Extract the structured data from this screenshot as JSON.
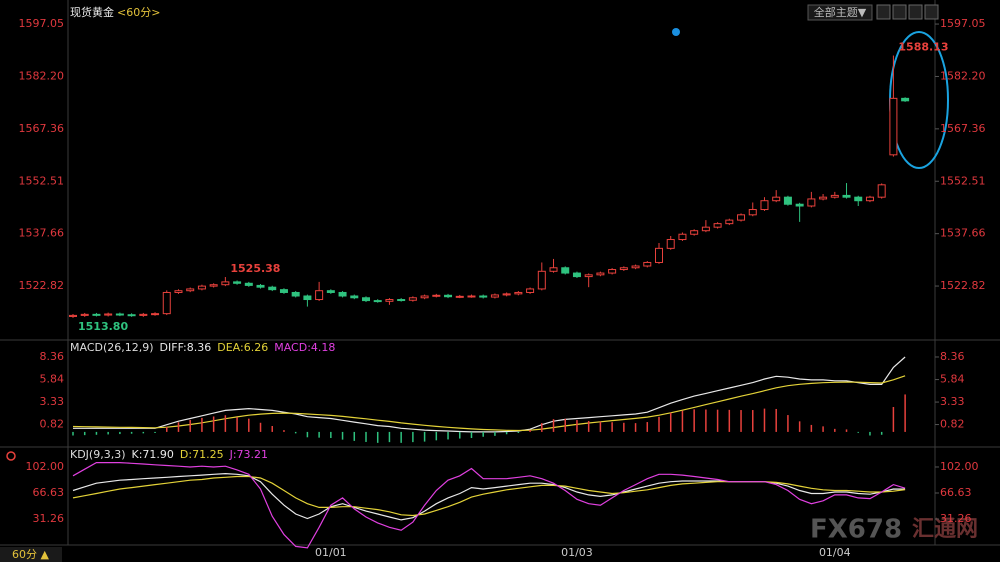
{
  "header": {
    "symbol": "现货黄金",
    "period": "<60分>",
    "theme_button": "全部主题▼"
  },
  "footer": {
    "period_button": "60分 ▲"
  },
  "watermark": {
    "brand": "FX678",
    "name": "汇通网"
  },
  "chart_data": [
    {
      "type": "candlestick",
      "up_color": "#e8413c",
      "down_color": "#2fc27f",
      "categories": [
        null,
        null,
        null,
        null,
        null,
        null,
        null,
        null,
        null,
        null,
        null,
        null,
        null,
        null,
        null,
        null,
        null,
        null,
        null,
        null,
        null,
        null,
        "01/01",
        null,
        null,
        null,
        null,
        null,
        null,
        null,
        null,
        null,
        null,
        null,
        null,
        null,
        null,
        null,
        null,
        null,
        null,
        null,
        null,
        "01/03",
        null,
        null,
        null,
        null,
        null,
        null,
        null,
        null,
        null,
        null,
        null,
        null,
        null,
        null,
        null,
        null,
        null,
        null,
        null,
        null,
        null,
        "01/04",
        null,
        null,
        null,
        null,
        null,
        null
      ],
      "open": [
        1514.2,
        1514.5,
        1514.8,
        1514.6,
        1514.9,
        1514.7,
        1514.5,
        1514.8,
        1515.0,
        1521.0,
        1521.5,
        1522.0,
        1522.8,
        1523.2,
        1524.0,
        1523.6,
        1523.0,
        1522.5,
        1521.8,
        1521.0,
        1520.0,
        1519.0,
        1521.5,
        1521.0,
        1520.0,
        1519.5,
        1518.7,
        1518.5,
        1519.0,
        1518.8,
        1519.5,
        1520.0,
        1520.2,
        1519.8,
        1519.9,
        1520.0,
        1519.7,
        1520.3,
        1520.6,
        1521.0,
        1522.0,
        1527.0,
        1528.0,
        1526.5,
        1525.5,
        1526.0,
        1526.5,
        1527.5,
        1528.0,
        1528.5,
        1529.5,
        1533.5,
        1536.0,
        1537.5,
        1538.5,
        1539.5,
        1540.5,
        1541.5,
        1543.0,
        1544.5,
        1547.0,
        1548.0,
        1546.0,
        1545.5,
        1547.5,
        1548.0,
        1548.5,
        1548.0,
        1547.0,
        1548.0,
        1560.0,
        1576.0
      ],
      "high": [
        1514.9,
        1515.2,
        1515.2,
        1515.3,
        1515.3,
        1515.1,
        1515.2,
        1515.4,
        1521.6,
        1521.9,
        1522.4,
        1523.2,
        1523.6,
        1525.38,
        1524.4,
        1524.0,
        1523.4,
        1522.9,
        1522.2,
        1521.4,
        1520.4,
        1524.0,
        1521.9,
        1521.4,
        1520.4,
        1519.9,
        1519.1,
        1519.4,
        1519.4,
        1519.9,
        1520.4,
        1520.6,
        1520.6,
        1520.3,
        1520.4,
        1520.4,
        1520.7,
        1521.0,
        1521.4,
        1522.4,
        1529.5,
        1530.5,
        1528.4,
        1526.9,
        1526.4,
        1526.9,
        1527.9,
        1528.4,
        1528.9,
        1529.9,
        1535.0,
        1537.0,
        1538.0,
        1538.9,
        1541.5,
        1540.9,
        1541.9,
        1543.4,
        1546.5,
        1548.0,
        1550.0,
        1548.4,
        1546.4,
        1549.5,
        1548.9,
        1549.5,
        1552.0,
        1548.4,
        1548.4,
        1551.9,
        1588.13,
        1576.3
      ],
      "low": [
        1513.8,
        1514.1,
        1514.2,
        1514.2,
        1514.3,
        1514.1,
        1514.1,
        1514.4,
        1514.6,
        1520.6,
        1521.1,
        1521.6,
        1522.4,
        1522.8,
        1523.2,
        1522.6,
        1522.1,
        1521.4,
        1520.6,
        1519.6,
        1517.0,
        1518.6,
        1520.6,
        1519.6,
        1519.1,
        1518.3,
        1518.1,
        1517.5,
        1518.4,
        1518.4,
        1519.1,
        1519.6,
        1519.4,
        1519.4,
        1519.5,
        1519.3,
        1519.3,
        1519.9,
        1520.2,
        1520.6,
        1521.6,
        1526.6,
        1526.1,
        1525.1,
        1522.5,
        1525.6,
        1526.1,
        1527.1,
        1527.6,
        1528.1,
        1529.1,
        1533.1,
        1535.6,
        1537.1,
        1538.1,
        1539.1,
        1540.1,
        1541.1,
        1542.6,
        1544.1,
        1546.6,
        1545.6,
        1541.0,
        1545.1,
        1547.1,
        1547.6,
        1547.6,
        1545.5,
        1546.6,
        1547.6,
        1559.5,
        1575.0
      ],
      "close": [
        1514.5,
        1514.8,
        1514.6,
        1514.9,
        1514.7,
        1514.5,
        1514.8,
        1515.0,
        1521.0,
        1521.5,
        1522.0,
        1522.8,
        1523.2,
        1524.0,
        1523.6,
        1523.0,
        1522.5,
        1521.8,
        1521.0,
        1520.0,
        1519.0,
        1521.5,
        1521.0,
        1520.0,
        1519.5,
        1518.7,
        1518.5,
        1519.0,
        1518.8,
        1519.5,
        1520.0,
        1520.2,
        1519.8,
        1519.9,
        1520.0,
        1519.7,
        1520.3,
        1520.6,
        1521.0,
        1522.0,
        1527.0,
        1528.0,
        1526.5,
        1525.5,
        1526.0,
        1526.5,
        1527.5,
        1528.0,
        1528.5,
        1529.5,
        1533.5,
        1536.0,
        1537.5,
        1538.5,
        1539.5,
        1540.5,
        1541.5,
        1543.0,
        1544.5,
        1547.0,
        1548.0,
        1546.0,
        1545.5,
        1547.5,
        1548.0,
        1548.5,
        1548.0,
        1547.0,
        1548.0,
        1551.5,
        1576.0,
        1575.3
      ],
      "ylim": [
        1508.1,
        1601.6
      ],
      "yticks": [
        1522.82,
        1537.66,
        1552.51,
        1567.36,
        {
          "value": 1582.2,
          "label": "1582.20"
        },
        1597.05
      ],
      "annotations": [
        "1525.38",
        "1513.80",
        "1588.13"
      ]
    },
    {
      "type": "macd",
      "title": "MACD(26,12,9)",
      "ylim": [
        -1.46,
        9.92
      ],
      "yticks": [
        0.82,
        3.33,
        5.84,
        8.36
      ],
      "bar_colors": [
        "#e8413c",
        "#2fc27f"
      ],
      "series": [
        {
          "name": "DIFF:8.36",
          "color": "#e8e8e8",
          "values": [
            0.4,
            0.4,
            0.4,
            0.4,
            0.4,
            0.4,
            0.4,
            0.4,
            0.8,
            1.2,
            1.5,
            1.8,
            2.1,
            2.4,
            2.5,
            2.6,
            2.5,
            2.4,
            2.2,
            2.0,
            1.7,
            1.6,
            1.5,
            1.3,
            1.1,
            0.9,
            0.7,
            0.6,
            0.4,
            0.3,
            0.2,
            0.15,
            0.1,
            0.05,
            0.0,
            0.0,
            0.0,
            0.05,
            0.1,
            0.3,
            0.8,
            1.2,
            1.4,
            1.5,
            1.6,
            1.7,
            1.8,
            1.9,
            2.0,
            2.2,
            2.7,
            3.2,
            3.6,
            4.0,
            4.3,
            4.6,
            4.9,
            5.2,
            5.5,
            5.9,
            6.2,
            6.1,
            5.9,
            5.8,
            5.8,
            5.7,
            5.7,
            5.5,
            5.3,
            5.3,
            7.2,
            8.36
          ]
        },
        {
          "name": "DEA:6.26",
          "color": "#e3d238",
          "values": [
            0.6,
            0.58,
            0.56,
            0.54,
            0.52,
            0.5,
            0.48,
            0.46,
            0.53,
            0.66,
            0.83,
            1.02,
            1.24,
            1.47,
            1.68,
            1.86,
            1.99,
            2.07,
            2.1,
            2.08,
            2.0,
            1.92,
            1.84,
            1.73,
            1.6,
            1.46,
            1.31,
            1.17,
            1.01,
            0.87,
            0.74,
            0.62,
            0.52,
            0.42,
            0.34,
            0.27,
            0.22,
            0.18,
            0.16,
            0.19,
            0.31,
            0.49,
            0.67,
            0.84,
            0.99,
            1.13,
            1.26,
            1.39,
            1.51,
            1.65,
            1.86,
            2.13,
            2.42,
            2.74,
            3.05,
            3.36,
            3.67,
            3.98,
            4.28,
            4.6,
            4.92,
            5.16,
            5.31,
            5.41,
            5.49,
            5.53,
            5.56,
            5.55,
            5.5,
            5.46,
            5.81,
            6.26
          ]
        },
        {
          "name": "MACD:4.18",
          "type": "bar",
          "color": "#e040e0",
          "values": [
            -0.4,
            -0.36,
            -0.32,
            -0.28,
            -0.24,
            -0.2,
            -0.16,
            -0.12,
            0.54,
            1.08,
            1.34,
            1.56,
            1.72,
            1.86,
            1.64,
            1.48,
            1.02,
            0.66,
            0.2,
            -0.16,
            -0.6,
            -0.64,
            -0.68,
            -0.86,
            -1.0,
            -1.12,
            -1.22,
            -1.14,
            -1.22,
            -1.14,
            -1.08,
            -0.94,
            -0.84,
            -0.74,
            -0.68,
            -0.54,
            -0.44,
            -0.26,
            -0.12,
            0.22,
            0.98,
            1.42,
            1.46,
            1.32,
            1.22,
            1.14,
            1.08,
            1.02,
            0.98,
            1.1,
            1.68,
            2.14,
            2.36,
            2.52,
            2.5,
            2.48,
            2.46,
            2.44,
            2.44,
            2.6,
            2.56,
            1.88,
            1.18,
            0.78,
            0.62,
            0.34,
            0.28,
            -0.1,
            -0.4,
            -0.32,
            2.78,
            4.18
          ]
        }
      ]
    },
    {
      "type": "line",
      "title": "KDJ(9,3,3)",
      "ylim": [
        -4.11,
        125.1
      ],
      "yticks": [
        31.26,
        66.63,
        {
          "value": 102,
          "label": "102.00"
        }
      ],
      "series": [
        {
          "name": "K:71.90",
          "color": "#e8e8e8",
          "values": [
            70,
            75,
            80,
            82,
            84,
            85,
            86,
            87,
            88,
            89,
            90,
            91,
            92,
            93,
            92,
            90,
            82,
            65,
            50,
            38,
            32,
            38,
            48,
            52,
            47,
            42,
            38,
            34,
            30,
            33,
            42,
            52,
            60,
            66,
            74,
            72,
            74,
            76,
            78,
            80,
            80,
            78,
            74,
            68,
            64,
            62,
            64,
            68,
            72,
            76,
            80,
            82,
            83,
            83,
            83,
            83,
            82,
            82,
            82,
            82,
            80,
            76,
            70,
            66,
            66,
            68,
            68,
            66,
            65,
            68,
            72,
            71.9
          ]
        },
        {
          "name": "D:71.25",
          "color": "#e3d238",
          "values": [
            60,
            63,
            66,
            69,
            72,
            74,
            76,
            78,
            80,
            82,
            84,
            85,
            87,
            88,
            89,
            89,
            87,
            80,
            70,
            60,
            52,
            47,
            47,
            48,
            48,
            46,
            44,
            41,
            37,
            36,
            38,
            43,
            48,
            54,
            61,
            65,
            68,
            71,
            73,
            75,
            77,
            77,
            76,
            73,
            70,
            68,
            66,
            67,
            69,
            71,
            74,
            77,
            79,
            80,
            81,
            82,
            82,
            82,
            82,
            82,
            81,
            79,
            76,
            73,
            71,
            70,
            70,
            69,
            68,
            68,
            69,
            71.25
          ]
        },
        {
          "name": "J:73.21",
          "color": "#e040e0",
          "values": [
            90,
            99,
            108,
            108,
            108,
            107,
            106,
            105,
            104,
            103,
            102,
            103,
            102,
            103,
            98,
            92,
            72,
            35,
            10,
            -6,
            -8,
            20,
            50,
            60,
            45,
            34,
            26,
            20,
            16,
            27,
            50,
            70,
            84,
            90,
            100,
            86,
            86,
            86,
            88,
            90,
            86,
            80,
            70,
            58,
            52,
            50,
            60,
            70,
            78,
            86,
            92,
            92,
            91,
            89,
            87,
            85,
            82,
            82,
            82,
            82,
            78,
            70,
            58,
            52,
            56,
            64,
            64,
            60,
            59,
            68,
            78,
            73.21
          ]
        }
      ]
    }
  ]
}
